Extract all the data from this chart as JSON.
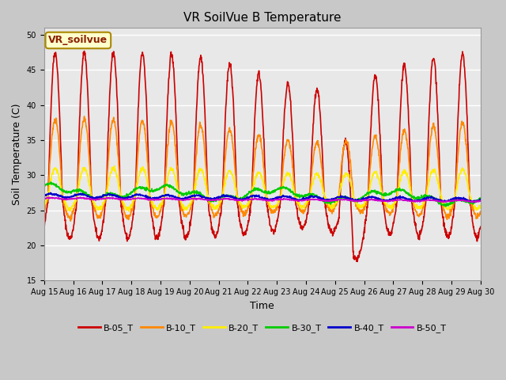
{
  "title": "VR SoilVue B Temperature",
  "xlabel": "Time",
  "ylabel": "Soil Temperature (C)",
  "ylim": [
    15,
    51
  ],
  "yticks": [
    15,
    20,
    25,
    30,
    35,
    40,
    45,
    50
  ],
  "x_tick_labels": [
    "Aug 15",
    "Aug 16",
    "Aug 17",
    "Aug 18",
    "Aug 19",
    "Aug 20",
    "Aug 21",
    "Aug 22",
    "Aug 23",
    "Aug 24",
    "Aug 25",
    "Aug 26",
    "Aug 27",
    "Aug 28",
    "Aug 29",
    "Aug 30"
  ],
  "annotation_text": "VR_soilvue",
  "annotation_bg": "#ffffcc",
  "annotation_border": "#aa8800",
  "fig_bg": "#c8c8c8",
  "plot_bg": "#e8e8e8",
  "series": {
    "B-05_T": {
      "color": "#cc0000",
      "lw": 1.2
    },
    "B-10_T": {
      "color": "#ff8800",
      "lw": 1.2
    },
    "B-20_T": {
      "color": "#ffee00",
      "lw": 1.2
    },
    "B-30_T": {
      "color": "#00cc00",
      "lw": 1.2
    },
    "B-40_T": {
      "color": "#0000cc",
      "lw": 1.2
    },
    "B-50_T": {
      "color": "#cc00cc",
      "lw": 1.2
    }
  },
  "legend_order": [
    "B-05_T",
    "B-10_T",
    "B-20_T",
    "B-30_T",
    "B-40_T",
    "B-50_T"
  ],
  "title_fontsize": 11,
  "axis_label_fontsize": 9,
  "tick_fontsize": 7,
  "grid_color": "#ffffff",
  "grid_lw": 1.0
}
